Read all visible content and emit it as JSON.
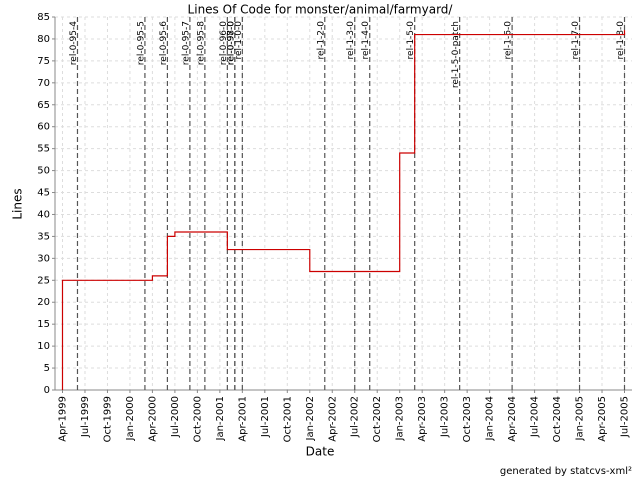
{
  "chart_data": {
    "type": "line",
    "drawstyle": "steps-post",
    "title": "Lines Of Code for monster/animal/farmyard/",
    "x_label": "Date",
    "y_label": "Lines",
    "x": [
      "1999-04",
      "2000-04",
      "2000-06",
      "2000-07",
      "2001-02",
      "2002-01",
      "2003-01",
      "2003-03",
      "2005-07"
    ],
    "values": [
      25,
      26,
      35,
      36,
      32,
      27,
      54,
      81,
      82
    ],
    "color": "#cc0000",
    "xlim": [
      "1999-03",
      "2005-08"
    ],
    "xticks": [
      {
        "value": "1999-04",
        "label": "Apr-1999"
      },
      {
        "value": "1999-07",
        "label": "Jul-1999"
      },
      {
        "value": "1999-10",
        "label": "Oct-1999"
      },
      {
        "value": "2000-01",
        "label": "Jan-2000"
      },
      {
        "value": "2000-04",
        "label": "Apr-2000"
      },
      {
        "value": "2000-07",
        "label": "Jul-2000"
      },
      {
        "value": "2000-10",
        "label": "Oct-2000"
      },
      {
        "value": "2001-01",
        "label": "Jan-2001"
      },
      {
        "value": "2001-04",
        "label": "Apr-2001"
      },
      {
        "value": "2001-07",
        "label": "Jul-2001"
      },
      {
        "value": "2001-10",
        "label": "Oct-2001"
      },
      {
        "value": "2002-01",
        "label": "Jan-2002"
      },
      {
        "value": "2002-04",
        "label": "Apr-2002"
      },
      {
        "value": "2002-07",
        "label": "Jul-2002"
      },
      {
        "value": "2002-10",
        "label": "Oct-2002"
      },
      {
        "value": "2003-01",
        "label": "Jan-2003"
      },
      {
        "value": "2003-04",
        "label": "Apr-2003"
      },
      {
        "value": "2003-07",
        "label": "Jul-2003"
      },
      {
        "value": "2003-10",
        "label": "Oct-2003"
      },
      {
        "value": "2004-01",
        "label": "Jan-2004"
      },
      {
        "value": "2004-04",
        "label": "Apr-2004"
      },
      {
        "value": "2004-07",
        "label": "Jul-2004"
      },
      {
        "value": "2004-10",
        "label": "Oct-2004"
      },
      {
        "value": "2005-01",
        "label": "Jan-2005"
      },
      {
        "value": "2005-04",
        "label": "Apr-2005"
      },
      {
        "value": "2005-07",
        "label": "Jul-2005"
      }
    ],
    "ylim": [
      0,
      85
    ],
    "yticks": [
      0,
      5,
      10,
      15,
      20,
      25,
      30,
      35,
      40,
      45,
      50,
      55,
      60,
      65,
      70,
      75,
      80,
      85
    ],
    "grid": true,
    "tags": [
      {
        "name": "rel-0-95-4",
        "x": "1999-06"
      },
      {
        "name": "rel-0-95-5",
        "x": "2000-03"
      },
      {
        "name": "rel-0-95-6",
        "x": "2000-06"
      },
      {
        "name": "rel-0-95-7",
        "x": "2000-09"
      },
      {
        "name": "rel-0-95-8",
        "x": "2000-11"
      },
      {
        "name": "rel-0-96-0",
        "x": "2001-02"
      },
      {
        "name": "rel-0-97-0",
        "x": "2001-03"
      },
      {
        "name": "rel-0-98-0",
        "x": "2001-03"
      },
      {
        "name": "rel-1-0-0",
        "x": "2001-04"
      },
      {
        "name": "rel-1-2-0",
        "x": "2002-03"
      },
      {
        "name": "rel-1-3-0",
        "x": "2002-07"
      },
      {
        "name": "rel-1-4-0",
        "x": "2002-09"
      },
      {
        "name": "rel-1-5-0",
        "x": "2003-03"
      },
      {
        "name": "rel-1-5-0-patch",
        "x": "2003-09"
      },
      {
        "name": "rel-1-6-0",
        "x": "2004-04"
      },
      {
        "name": "rel-1-7-0",
        "x": "2005-01"
      },
      {
        "name": "rel-1-8-0",
        "x": "2005-07"
      }
    ]
  },
  "footer": "generated by statcvs-xml²"
}
